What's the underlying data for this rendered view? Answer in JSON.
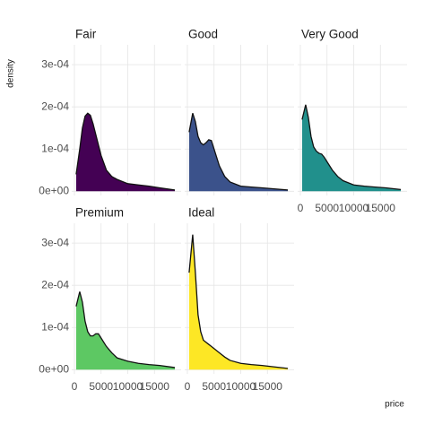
{
  "chart_data": {
    "type": "density",
    "xlabel": "price",
    "ylabel": "density",
    "x": [
      326,
      1000,
      1500,
      2000,
      2500,
      3000,
      3500,
      4000,
      4500,
      5000,
      6000,
      7000,
      8000,
      10000,
      12000,
      14000,
      16000,
      18823
    ],
    "series": [
      {
        "name": "Fair",
        "color": "#440154",
        "values": [
          4e-05,
          0.0001,
          0.00015,
          0.000178,
          0.000185,
          0.00018,
          0.00016,
          0.000135,
          0.00011,
          8.5e-05,
          5e-05,
          3.5e-05,
          2.8e-05,
          1.8e-05,
          1.5e-05,
          1.2e-05,
          8e-06,
          3e-06
        ]
      },
      {
        "name": "Good",
        "color": "#3b528b",
        "values": [
          0.00014,
          0.000185,
          0.000165,
          0.00013,
          0.000115,
          0.00011,
          0.000115,
          0.000122,
          0.00012,
          0.0001,
          6e-05,
          3.5e-05,
          2.2e-05,
          1.2e-05,
          1e-05,
          8e-06,
          6e-06,
          3e-06
        ]
      },
      {
        "name": "Very Good",
        "color": "#21908c",
        "values": [
          0.00017,
          0.000205,
          0.000175,
          0.00013,
          0.000105,
          9.5e-05,
          9e-05,
          8.8e-05,
          8e-05,
          7e-05,
          5e-05,
          3.5e-05,
          2.5e-05,
          1.5e-05,
          1.2e-05,
          1e-05,
          8e-06,
          4e-06
        ]
      },
      {
        "name": "Premium",
        "color": "#5dc863",
        "values": [
          0.00015,
          0.000185,
          0.00016,
          0.000115,
          9e-05,
          8e-05,
          8e-05,
          8.5e-05,
          8.5e-05,
          7.5e-05,
          5.5e-05,
          4e-05,
          2.8e-05,
          2e-05,
          1.5e-05,
          1.2e-05,
          1e-05,
          5e-06
        ]
      },
      {
        "name": "Ideal",
        "color": "#fde725",
        "values": [
          0.00023,
          0.00032,
          0.00023,
          0.00013,
          9e-05,
          7e-05,
          6.5e-05,
          6e-05,
          5.5e-05,
          5e-05,
          4e-05,
          3e-05,
          2.2e-05,
          1.5e-05,
          1.2e-05,
          1e-05,
          7e-06,
          3e-06
        ]
      }
    ],
    "xlim": [
      -500,
      20000
    ],
    "xticks": [
      0,
      5000,
      10000,
      15000
    ],
    "ylim": [
      -1e-05,
      0.000347
    ],
    "yticks": [
      {
        "value": 0,
        "label": "0e+00"
      },
      {
        "value": 0.0001,
        "label": "1e-04"
      },
      {
        "value": 0.0002,
        "label": "2e-04"
      },
      {
        "value": 0.0003,
        "label": "3e-04"
      }
    ],
    "grid": true,
    "ncol": 3
  }
}
